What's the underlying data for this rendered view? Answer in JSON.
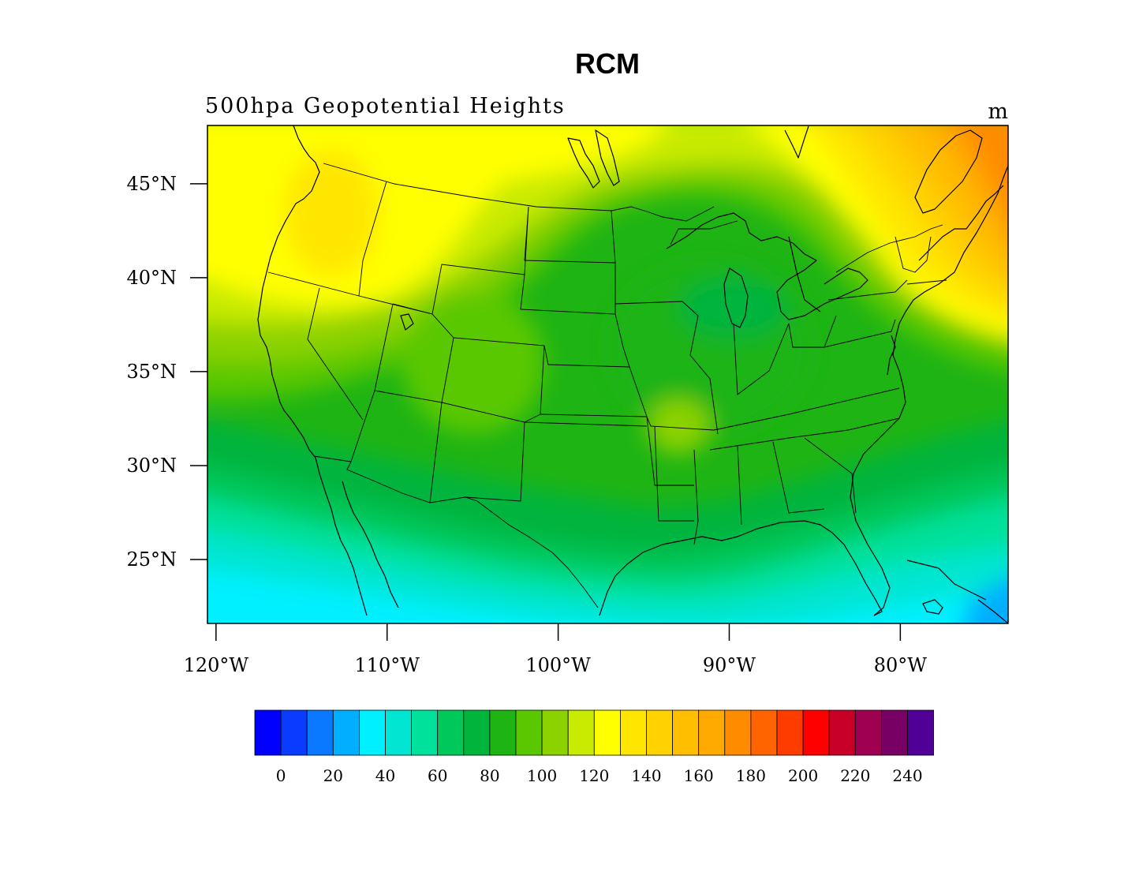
{
  "title": "RCM",
  "subtitle": "500hpa Geopotential Heights",
  "units": "m",
  "map": {
    "projection": "cylindrical equidistant",
    "lon_range": [
      -120.5,
      -73.7
    ],
    "lat_range": [
      21.6,
      48.1
    ],
    "x_ticks": [
      {
        "lon": -120,
        "label": "120°W"
      },
      {
        "lon": -110,
        "label": "110°W"
      },
      {
        "lon": -100,
        "label": "100°W"
      },
      {
        "lon": -90,
        "label": "90°W"
      },
      {
        "lon": -80,
        "label": "80°W"
      }
    ],
    "y_ticks": [
      {
        "lat": 45,
        "label": "45°N"
      },
      {
        "lat": 40,
        "label": "40°N"
      },
      {
        "lat": 35,
        "label": "35°N"
      },
      {
        "lat": 30,
        "label": "30°N"
      },
      {
        "lat": 25,
        "label": "25°N"
      }
    ],
    "field": "500 hPa geopotential height",
    "field_max_region": "northeast (New England / Nova Scotia), about 180 m",
    "field_min_region": "southern Florida / Gulf, about 30 m"
  },
  "colorbar": {
    "colors": [
      "#0000ff",
      "#0a3cff",
      "#0a78ff",
      "#00afff",
      "#00f0ff",
      "#00e6d2",
      "#00e19b",
      "#00c85a",
      "#00b43c",
      "#1eb414",
      "#5ac800",
      "#8cd200",
      "#c8eb00",
      "#ffff00",
      "#ffe600",
      "#ffd200",
      "#ffbe00",
      "#ffaa00",
      "#ff8c00",
      "#ff6400",
      "#ff3c00",
      "#ff0000",
      "#c80028",
      "#a00050",
      "#780064",
      "#500096"
    ],
    "labels": [
      "0",
      "20",
      "40",
      "60",
      "80",
      "100",
      "120",
      "140",
      "160",
      "180",
      "200",
      "220",
      "240"
    ]
  }
}
